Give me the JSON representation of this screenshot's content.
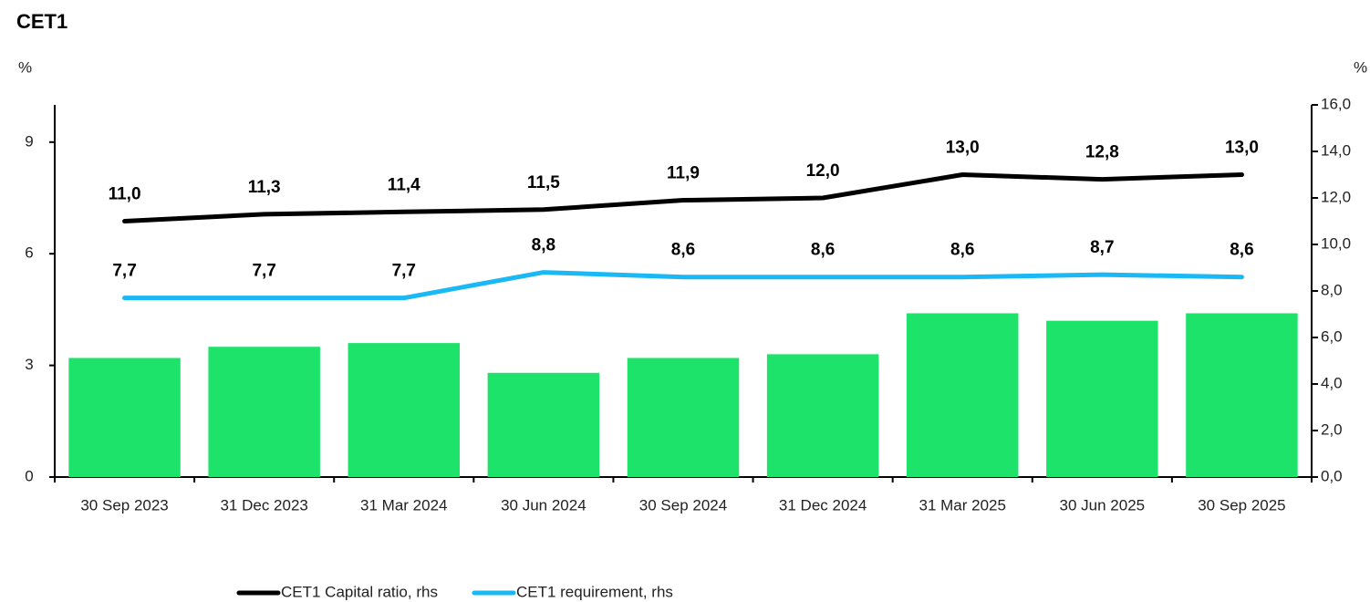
{
  "chart_data": {
    "type": "bar-line",
    "title": "CET1",
    "y_label": "%",
    "y2_label": "%",
    "categories": [
      "30 Sep 2023",
      "31 Dec 2023",
      "31 Mar 2024",
      "30 Jun 2024",
      "30 Sep 2024",
      "31 Dec 2024",
      "31 Mar 2025",
      "30 Jun 2025",
      "30 Sep 2025"
    ],
    "ylim": [
      0,
      10
    ],
    "yticks": [
      0,
      3,
      6,
      9
    ],
    "y2lim": [
      0,
      16
    ],
    "y2ticks": [
      {
        "value": 0,
        "label": "0,0"
      },
      {
        "value": 2,
        "label": "2,0"
      },
      {
        "value": 4,
        "label": "4,0"
      },
      {
        "value": 6,
        "label": "6,0"
      },
      {
        "value": 8,
        "label": "8,0"
      },
      {
        "value": 10,
        "label": "10,0"
      },
      {
        "value": 12,
        "label": "12,0"
      },
      {
        "value": 14,
        "label": "14,0"
      },
      {
        "value": 16,
        "label": "16,0"
      }
    ],
    "series": [
      {
        "type": "bar",
        "color": "#1ee36a",
        "values": [
          3.2,
          3.5,
          3.6,
          2.8,
          3.2,
          3.3,
          4.4,
          4.2,
          4.4
        ]
      },
      {
        "type": "line",
        "name": "CET1 Capital ratio, rhs",
        "color": "#000000",
        "axis": "y2",
        "values": [
          11.0,
          11.3,
          11.4,
          11.5,
          11.9,
          12.0,
          13.0,
          12.8,
          13.0
        ],
        "value_labels": [
          "11,0",
          "11,3",
          "11,4",
          "11,5",
          "11,9",
          "12,0",
          "13,0",
          "12,8",
          "13,0"
        ]
      },
      {
        "type": "line",
        "name": "CET1 requirement, rhs",
        "color": "#1ab8f5",
        "axis": "y2",
        "values": [
          7.7,
          7.7,
          7.7,
          8.8,
          8.6,
          8.6,
          8.6,
          8.7,
          8.6
        ],
        "value_labels": [
          "7,7",
          "7,7",
          "7,7",
          "8,8",
          "8,6",
          "8,6",
          "8,6",
          "8,7",
          "8,6"
        ]
      }
    ]
  }
}
